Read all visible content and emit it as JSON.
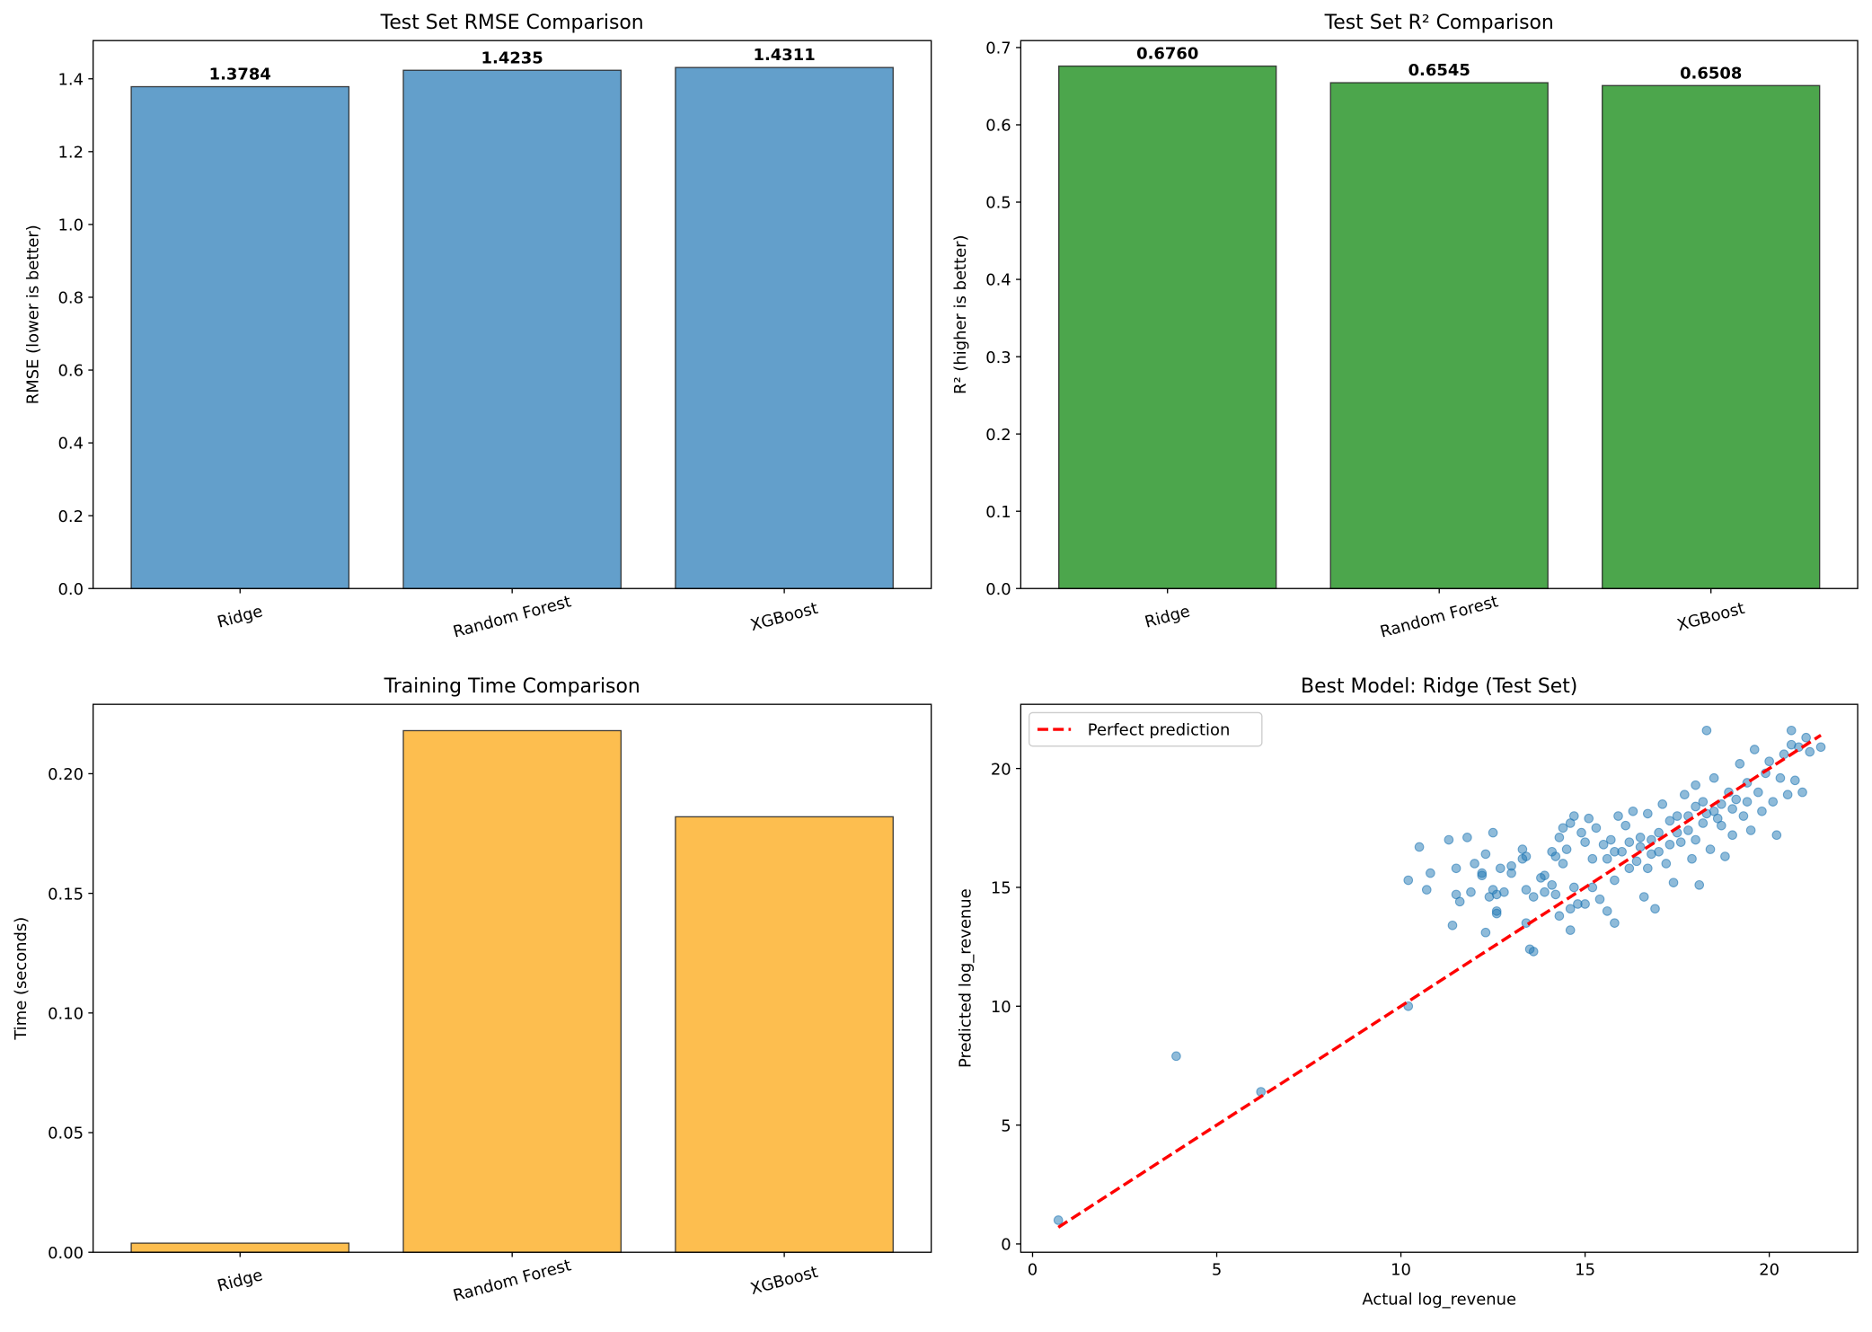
{
  "chart_data": [
    {
      "type": "bar",
      "title": "Test Set RMSE Comparison",
      "xlabel": "",
      "ylabel": "RMSE (lower is better)",
      "categories": [
        "Ridge",
        "Random Forest",
        "XGBoost"
      ],
      "values": [
        1.3784,
        1.4235,
        1.4311
      ],
      "data_labels": [
        "1.3784",
        "1.4235",
        "1.4311"
      ],
      "ylim": [
        0,
        1.505
      ],
      "yticks": [
        0.0,
        0.2,
        0.4,
        0.6,
        0.8,
        1.0,
        1.2,
        1.4
      ],
      "ytick_labels": [
        "0.0",
        "0.2",
        "0.4",
        "0.6",
        "0.8",
        "1.0",
        "1.2",
        "1.4"
      ],
      "color": "#639fcb",
      "grid": false
    },
    {
      "type": "bar",
      "title": "Test Set R² Comparison",
      "xlabel": "",
      "ylabel": "R² (higher is better)",
      "categories": [
        "Ridge",
        "Random Forest",
        "XGBoost"
      ],
      "values": [
        0.676,
        0.6545,
        0.6508
      ],
      "data_labels": [
        "0.6760",
        "0.6545",
        "0.6508"
      ],
      "ylim": [
        0,
        0.709
      ],
      "yticks": [
        0.0,
        0.1,
        0.2,
        0.3,
        0.4,
        0.5,
        0.6,
        0.7
      ],
      "ytick_labels": [
        "0.0",
        "0.1",
        "0.2",
        "0.3",
        "0.4",
        "0.5",
        "0.6",
        "0.7"
      ],
      "color": "#4ca64c",
      "grid": false
    },
    {
      "type": "bar",
      "title": "Training Time Comparison",
      "xlabel": "",
      "ylabel": "Time (seconds)",
      "categories": [
        "Ridge",
        "Random Forest",
        "XGBoost"
      ],
      "values": [
        0.0038,
        0.218,
        0.182
      ],
      "ylim": [
        0,
        0.229
      ],
      "yticks": [
        0.0,
        0.05,
        0.1,
        0.15,
        0.2
      ],
      "ytick_labels": [
        "0.00",
        "0.05",
        "0.10",
        "0.15",
        "0.20"
      ],
      "color": "#fdbe4f",
      "grid": false
    },
    {
      "type": "scatter",
      "title": "Best Model: Ridge (Test Set)",
      "xlabel": "Actual log_revenue",
      "ylabel": "Predicted log_revenue",
      "xlim": [
        -0.32,
        22.4
      ],
      "ylim": [
        -0.35,
        22.7
      ],
      "xticks": [
        0,
        5,
        10,
        15,
        20
      ],
      "xtick_labels": [
        "0",
        "5",
        "10",
        "15",
        "20"
      ],
      "yticks": [
        0,
        5,
        10,
        15,
        20
      ],
      "ytick_labels": [
        "0",
        "5",
        "10",
        "15",
        "20"
      ],
      "color": "#1f77b4",
      "legend": {
        "position": "top-left",
        "entries": [
          "Perfect prediction"
        ]
      },
      "reference_line": {
        "name": "Perfect prediction",
        "x": [
          0.7,
          21.4
        ],
        "y": [
          0.7,
          21.4
        ],
        "color": "#ff0000",
        "style": "dashed"
      },
      "points": [
        [
          0.7,
          1.0
        ],
        [
          3.9,
          7.9
        ],
        [
          6.2,
          6.4
        ],
        [
          10.2,
          10.0
        ],
        [
          10.2,
          15.3
        ],
        [
          10.5,
          16.7
        ],
        [
          10.8,
          15.6
        ],
        [
          10.7,
          14.9
        ],
        [
          11.3,
          17.0
        ],
        [
          11.4,
          13.4
        ],
        [
          11.5,
          15.8
        ],
        [
          11.5,
          14.7
        ],
        [
          11.6,
          14.4
        ],
        [
          11.8,
          17.1
        ],
        [
          11.9,
          14.8
        ],
        [
          12.0,
          16.0
        ],
        [
          12.2,
          15.5
        ],
        [
          12.2,
          15.6
        ],
        [
          12.3,
          13.1
        ],
        [
          12.3,
          16.4
        ],
        [
          12.4,
          14.6
        ],
        [
          12.5,
          14.9
        ],
        [
          12.6,
          14.0
        ],
        [
          12.6,
          13.9
        ],
        [
          12.6,
          14.7
        ],
        [
          12.7,
          15.8
        ],
        [
          12.5,
          17.3
        ],
        [
          12.8,
          14.8
        ],
        [
          13.0,
          15.9
        ],
        [
          13.0,
          15.6
        ],
        [
          13.3,
          16.6
        ],
        [
          13.3,
          16.2
        ],
        [
          13.4,
          16.3
        ],
        [
          13.4,
          14.9
        ],
        [
          13.4,
          13.5
        ],
        [
          13.5,
          12.4
        ],
        [
          13.6,
          12.3
        ],
        [
          13.6,
          14.6
        ],
        [
          13.8,
          15.4
        ],
        [
          13.9,
          15.5
        ],
        [
          13.9,
          14.8
        ],
        [
          14.1,
          15.1
        ],
        [
          14.1,
          16.5
        ],
        [
          14.2,
          16.3
        ],
        [
          14.2,
          14.7
        ],
        [
          14.3,
          17.1
        ],
        [
          14.3,
          13.8
        ],
        [
          14.4,
          16.0
        ],
        [
          14.4,
          17.5
        ],
        [
          14.5,
          16.6
        ],
        [
          14.6,
          17.7
        ],
        [
          14.6,
          13.2
        ],
        [
          14.6,
          14.1
        ],
        [
          14.7,
          15.0
        ],
        [
          14.7,
          18.0
        ],
        [
          14.8,
          14.3
        ],
        [
          14.9,
          17.3
        ],
        [
          15.0,
          14.3
        ],
        [
          15.0,
          16.9
        ],
        [
          15.1,
          17.9
        ],
        [
          15.2,
          16.2
        ],
        [
          15.2,
          15.0
        ],
        [
          15.3,
          17.5
        ],
        [
          15.4,
          14.5
        ],
        [
          15.5,
          16.8
        ],
        [
          15.6,
          16.2
        ],
        [
          15.6,
          14.0
        ],
        [
          15.7,
          17.0
        ],
        [
          15.8,
          15.3
        ],
        [
          15.8,
          13.5
        ],
        [
          15.9,
          18.0
        ],
        [
          16.0,
          16.5
        ],
        [
          16.1,
          17.6
        ],
        [
          16.2,
          15.8
        ],
        [
          16.3,
          18.2
        ],
        [
          16.4,
          16.1
        ],
        [
          16.5,
          17.1
        ],
        [
          16.6,
          14.6
        ],
        [
          16.7,
          15.8
        ],
        [
          16.7,
          18.1
        ],
        [
          16.8,
          16.4
        ],
        [
          16.9,
          14.1
        ],
        [
          17.0,
          17.3
        ],
        [
          17.1,
          18.5
        ],
        [
          17.2,
          16.0
        ],
        [
          17.3,
          17.8
        ],
        [
          17.4,
          15.2
        ],
        [
          17.5,
          18.0
        ],
        [
          17.6,
          16.9
        ],
        [
          17.7,
          18.9
        ],
        [
          17.8,
          17.4
        ],
        [
          17.9,
          16.2
        ],
        [
          18.0,
          18.4
        ],
        [
          18.0,
          19.3
        ],
        [
          18.1,
          15.1
        ],
        [
          18.2,
          17.7
        ],
        [
          18.3,
          21.6
        ],
        [
          18.3,
          18.1
        ],
        [
          18.4,
          16.6
        ],
        [
          18.5,
          19.6
        ],
        [
          18.6,
          17.9
        ],
        [
          18.7,
          18.5
        ],
        [
          18.8,
          16.3
        ],
        [
          18.9,
          19.0
        ],
        [
          19.0,
          17.2
        ],
        [
          19.1,
          18.7
        ],
        [
          19.2,
          20.2
        ],
        [
          19.3,
          18.0
        ],
        [
          19.4,
          19.4
        ],
        [
          19.5,
          17.4
        ],
        [
          19.6,
          20.8
        ],
        [
          19.7,
          19.0
        ],
        [
          19.8,
          18.2
        ],
        [
          19.9,
          19.8
        ],
        [
          20.0,
          20.3
        ],
        [
          20.1,
          18.6
        ],
        [
          20.2,
          17.2
        ],
        [
          20.3,
          19.6
        ],
        [
          20.4,
          20.6
        ],
        [
          20.5,
          18.9
        ],
        [
          20.6,
          21.6
        ],
        [
          20.6,
          21.0
        ],
        [
          20.7,
          19.5
        ],
        [
          20.8,
          20.9
        ],
        [
          20.9,
          19.0
        ],
        [
          21.0,
          21.3
        ],
        [
          21.1,
          20.7
        ],
        [
          21.4,
          20.9
        ],
        [
          16.5,
          16.7
        ],
        [
          17.0,
          16.5
        ],
        [
          17.5,
          17.3
        ],
        [
          18.0,
          17.0
        ],
        [
          18.5,
          18.2
        ],
        [
          19.0,
          18.3
        ],
        [
          17.8,
          18.0
        ],
        [
          18.2,
          18.6
        ],
        [
          16.8,
          17.0
        ],
        [
          17.3,
          16.8
        ],
        [
          18.7,
          17.6
        ],
        [
          19.4,
          18.6
        ],
        [
          16.2,
          16.9
        ],
        [
          15.8,
          16.5
        ]
      ]
    }
  ]
}
